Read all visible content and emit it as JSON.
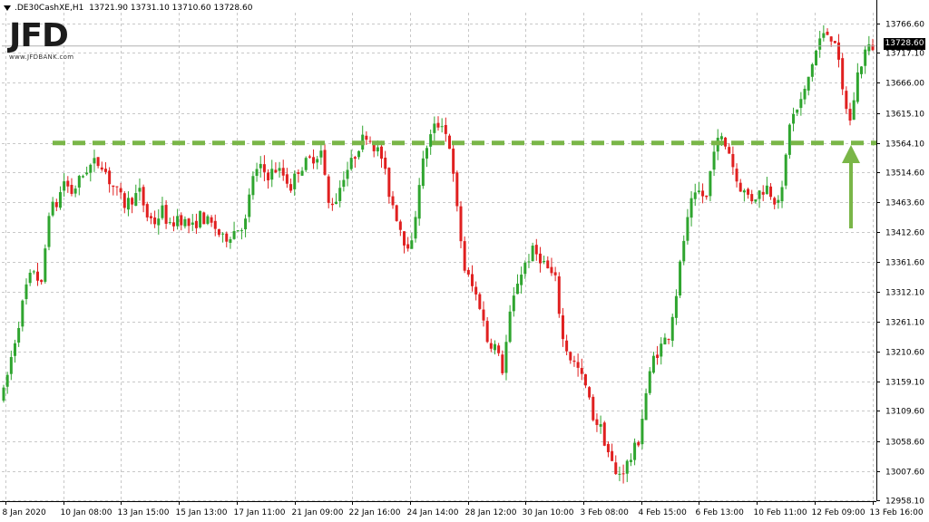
{
  "header": {
    "symbol_timeframe": ".DE30CashXE,H1",
    "ohlc": "13721.90 13731.10 13710.60 13728.60"
  },
  "logo": {
    "mark": "JFD",
    "subtitle": "www.JFDBANK.com"
  },
  "current_price_label": "13728.60",
  "colors": {
    "bull": "#2fa52f",
    "bear": "#e02020",
    "grid": "#c8c8c8",
    "resistance": "#7ab648",
    "arrow": "#7ab648",
    "price_tag_bg": "#000000"
  },
  "chart_data": {
    "type": "candlestick",
    "ylim": [
      12945,
      13790
    ],
    "y_tick_labels": [
      "13766.60",
      "13717.10",
      "13666.00",
      "13615.10",
      "13564.10",
      "13514.60",
      "13463.60",
      "13412.60",
      "13361.60",
      "13312.10",
      "13261.10",
      "13210.60",
      "13159.10",
      "13109.60",
      "13058.60",
      "13007.60",
      "12958.10"
    ],
    "x_tick_labels": [
      "8 Jan 2020",
      "10 Jan 08:00",
      "13 Jan 15:00",
      "15 Jan 13:00",
      "17 Jan 11:00",
      "21 Jan 09:00",
      "22 Jan 16:00",
      "24 Jan 14:00",
      "28 Jan 12:00",
      "30 Jan 10:00",
      "3 Feb 08:00",
      "4 Feb 15:00",
      "6 Feb 13:00",
      "10 Feb 11:00",
      "12 Feb 09:00",
      "13 Feb 16:00"
    ],
    "resistance_level": 13564.1,
    "last_price": 13728.6,
    "candles_close_path": [
      13140,
      13200,
      13260,
      13320,
      13350,
      13320,
      13450,
      13460,
      13500,
      13480,
      13500,
      13520,
      13530,
      13530,
      13500,
      13480,
      13460,
      13470,
      13480,
      13440,
      13430,
      13450,
      13420,
      13440,
      13430,
      13420,
      13440,
      13430,
      13420,
      13400,
      13410,
      13420,
      13430,
      13510,
      13520,
      13510,
      13520,
      13510,
      13490,
      13520,
      13530,
      13540,
      13550,
      13460,
      13470,
      13510,
      13530,
      13560,
      13580,
      13560,
      13540,
      13480,
      13440,
      13400,
      13390,
      13500,
      13560,
      13590,
      13600,
      13560,
      13450,
      13350,
      13320,
      13290,
      13230,
      13220,
      13180,
      13270,
      13330,
      13360,
      13380,
      13370,
      13350,
      13330,
      13230,
      13200,
      13180,
      13150,
      13100,
      13080,
      13040,
      13000,
      13010,
      13030,
      13060,
      13140,
      13200,
      13220,
      13240,
      13310,
      13400,
      13460,
      13480,
      13470,
      13560,
      13570,
      13550,
      13500,
      13480,
      13470,
      13480,
      13490,
      13470,
      13480,
      13600,
      13620,
      13650,
      13700,
      13740,
      13750,
      13740,
      13650,
      13600,
      13680,
      13720,
      13728
    ]
  }
}
